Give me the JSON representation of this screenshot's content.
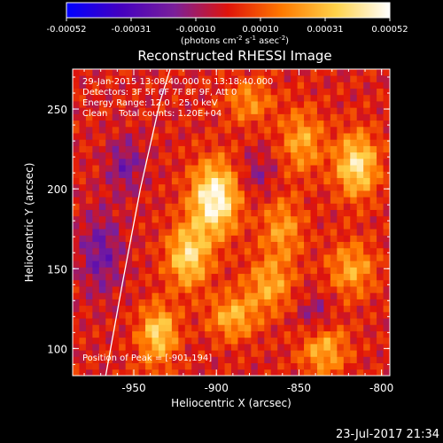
{
  "chart_data": {
    "type": "heatmap",
    "title": "Reconstructed RHESSI Image",
    "colorbar": {
      "ticks": [
        "-0.00052",
        "-0.00031",
        "-0.00010",
        "0.00010",
        "0.00031",
        "0.00052"
      ],
      "unit_prefix": "(photons cm",
      "unit_exp1": "-2",
      "unit_mid": " s",
      "unit_exp2": "-1",
      "unit_mid2": " asec",
      "unit_exp3": "-2",
      "unit_suffix": ")",
      "min": -0.00052,
      "max": 0.00052,
      "colors": [
        "#0000ff",
        "#4400c0",
        "#7a1f9a",
        "#e0140a",
        "#ff7a00",
        "#ffd24a",
        "#ffffff"
      ]
    },
    "xlabel": "Heliocentric X (arcsec)",
    "ylabel": "Heliocentric Y (arcsec)",
    "xlim": [
      -987,
      -795
    ],
    "ylim": [
      83,
      275
    ],
    "xticks": [
      -950,
      -900,
      -850,
      -800
    ],
    "yticks": [
      100,
      150,
      200,
      250
    ],
    "annotations": {
      "time_range": "29-Jan-2015 13:08:40.000 to 13:18:40.000",
      "detectors": "Detectors: 3F 5F 6F 7F 8F 9F, Att 0",
      "energy": "Energy Range: 12.0 - 25.0 keV",
      "method": "Clean    Total counts: 1.20E+04",
      "peak": "Position of Peak = [-901,194]"
    },
    "peak": {
      "x": -901,
      "y": 194
    },
    "limb_arc": [
      [
        -967,
        83
      ],
      [
        -957,
        140
      ],
      [
        -946,
        200
      ],
      [
        -934,
        255
      ],
      [
        -928,
        275
      ]
    ],
    "blobs": [
      {
        "x": -901,
        "y": 194,
        "sx": 10,
        "sy": 16,
        "amp": 1.0
      },
      {
        "x": -917,
        "y": 158,
        "sx": 9,
        "sy": 14,
        "amp": 0.75
      },
      {
        "x": -935,
        "y": 110,
        "sx": 8,
        "sy": 12,
        "amp": 0.7
      },
      {
        "x": -890,
        "y": 120,
        "sx": 10,
        "sy": 10,
        "amp": 0.55
      },
      {
        "x": -868,
        "y": 140,
        "sx": 10,
        "sy": 12,
        "amp": 0.5
      },
      {
        "x": -860,
        "y": 175,
        "sx": 9,
        "sy": 14,
        "amp": 0.45
      },
      {
        "x": -848,
        "y": 230,
        "sx": 9,
        "sy": 14,
        "amp": 0.5
      },
      {
        "x": -815,
        "y": 215,
        "sx": 9,
        "sy": 14,
        "amp": 0.8
      },
      {
        "x": -818,
        "y": 150,
        "sx": 10,
        "sy": 12,
        "amp": 0.5
      },
      {
        "x": -835,
        "y": 100,
        "sx": 10,
        "sy": 12,
        "amp": 0.55
      },
      {
        "x": -880,
        "y": 255,
        "sx": 10,
        "sy": 10,
        "amp": 0.4
      },
      {
        "x": -940,
        "y": 60,
        "sx": 8,
        "sy": 20,
        "amp": 0.3
      },
      {
        "x": -955,
        "y": 215,
        "sx": 8,
        "sy": 12,
        "amp": -0.35
      },
      {
        "x": -970,
        "y": 160,
        "sx": 9,
        "sy": 18,
        "amp": -0.4
      },
      {
        "x": -840,
        "y": 120,
        "sx": 8,
        "sy": 10,
        "amp": -0.3
      },
      {
        "x": -875,
        "y": 210,
        "sx": 8,
        "sy": 10,
        "amp": -0.25
      }
    ]
  },
  "footer": {
    "date": "23-Jul-2017 21:34"
  }
}
